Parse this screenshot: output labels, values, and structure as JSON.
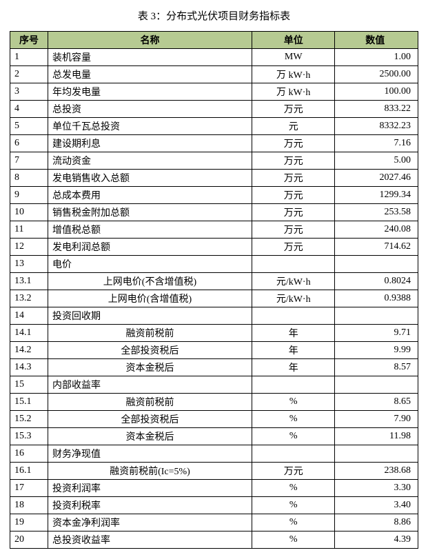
{
  "title": "表 3：分布式光伏项目财务指标表",
  "columns": [
    "序号",
    "名称",
    "单位",
    "数值"
  ],
  "colors": {
    "header_bg": "#b6ca92",
    "border": "#000000",
    "background": "#ffffff",
    "text": "#000000"
  },
  "rows": [
    {
      "seq": "1",
      "name": "装机容量",
      "unit": "MW",
      "value": "1.00",
      "indent": 0
    },
    {
      "seq": "2",
      "name": "总发电量",
      "unit": "万 kW·h",
      "value": "2500.00",
      "indent": 0
    },
    {
      "seq": "3",
      "name": "年均发电量",
      "unit": "万 kW·h",
      "value": "100.00",
      "indent": 0
    },
    {
      "seq": "4",
      "name": "总投资",
      "unit": "万元",
      "value": "833.22",
      "indent": 0
    },
    {
      "seq": "5",
      "name": "单位千瓦总投资",
      "unit": "元",
      "value": "8332.23",
      "indent": 0
    },
    {
      "seq": "6",
      "name": "建设期利息",
      "unit": "万元",
      "value": "7.16",
      "indent": 0
    },
    {
      "seq": "7",
      "name": "流动资金",
      "unit": "万元",
      "value": "5.00",
      "indent": 0
    },
    {
      "seq": "8",
      "name": "发电销售收入总额",
      "unit": "万元",
      "value": "2027.46",
      "indent": 0
    },
    {
      "seq": "9",
      "name": "总成本费用",
      "unit": "万元",
      "value": "1299.34",
      "indent": 0
    },
    {
      "seq": "10",
      "name": "销售税金附加总额",
      "unit": "万元",
      "value": "253.58",
      "indent": 0
    },
    {
      "seq": "11",
      "name": "增值税总额",
      "unit": "万元",
      "value": "240.08",
      "indent": 0
    },
    {
      "seq": "12",
      "name": "发电利润总额",
      "unit": "万元",
      "value": "714.62",
      "indent": 0
    },
    {
      "seq": "13",
      "name": "电价",
      "unit": "",
      "value": "",
      "indent": 0
    },
    {
      "seq": "13.1",
      "name": "上网电价(不含增值税)",
      "unit": "元/kW·h",
      "value": "0.8024",
      "indent": 1
    },
    {
      "seq": "13.2",
      "name": "上网电价(含增值税)",
      "unit": "元/kW·h",
      "value": "0.9388",
      "indent": 1
    },
    {
      "seq": "14",
      "name": "投资回收期",
      "unit": "",
      "value": "",
      "indent": 0
    },
    {
      "seq": "14.1",
      "name": "融资前税前",
      "unit": "年",
      "value": "9.71",
      "indent": 1
    },
    {
      "seq": "14.2",
      "name": "全部投资税后",
      "unit": "年",
      "value": "9.99",
      "indent": 1
    },
    {
      "seq": "14.3",
      "name": "资本金税后",
      "unit": "年",
      "value": "8.57",
      "indent": 1
    },
    {
      "seq": "15",
      "name": "内部收益率",
      "unit": "",
      "value": "",
      "indent": 0
    },
    {
      "seq": "15.1",
      "name": "融资前税前",
      "unit": "%",
      "value": "8.65",
      "indent": 1
    },
    {
      "seq": "15.2",
      "name": "全部投资税后",
      "unit": "%",
      "value": "7.90",
      "indent": 1
    },
    {
      "seq": "15.3",
      "name": "资本金税后",
      "unit": "%",
      "value": "11.98",
      "indent": 1
    },
    {
      "seq": "16",
      "name": "财务净现值",
      "unit": "",
      "value": "",
      "indent": 0
    },
    {
      "seq": "16.1",
      "name": "融资前税前(Ic=5%)",
      "unit": "万元",
      "value": "238.68",
      "indent": 1
    },
    {
      "seq": "17",
      "name": "投资利润率",
      "unit": "%",
      "value": "3.30",
      "indent": 0
    },
    {
      "seq": "18",
      "name": "投资利税率",
      "unit": "%",
      "value": "3.40",
      "indent": 0
    },
    {
      "seq": "19",
      "name": "资本金净利润率",
      "unit": "%",
      "value": "8.86",
      "indent": 0
    },
    {
      "seq": "20",
      "name": "总投资收益率",
      "unit": "%",
      "value": "4.39",
      "indent": 0
    }
  ]
}
